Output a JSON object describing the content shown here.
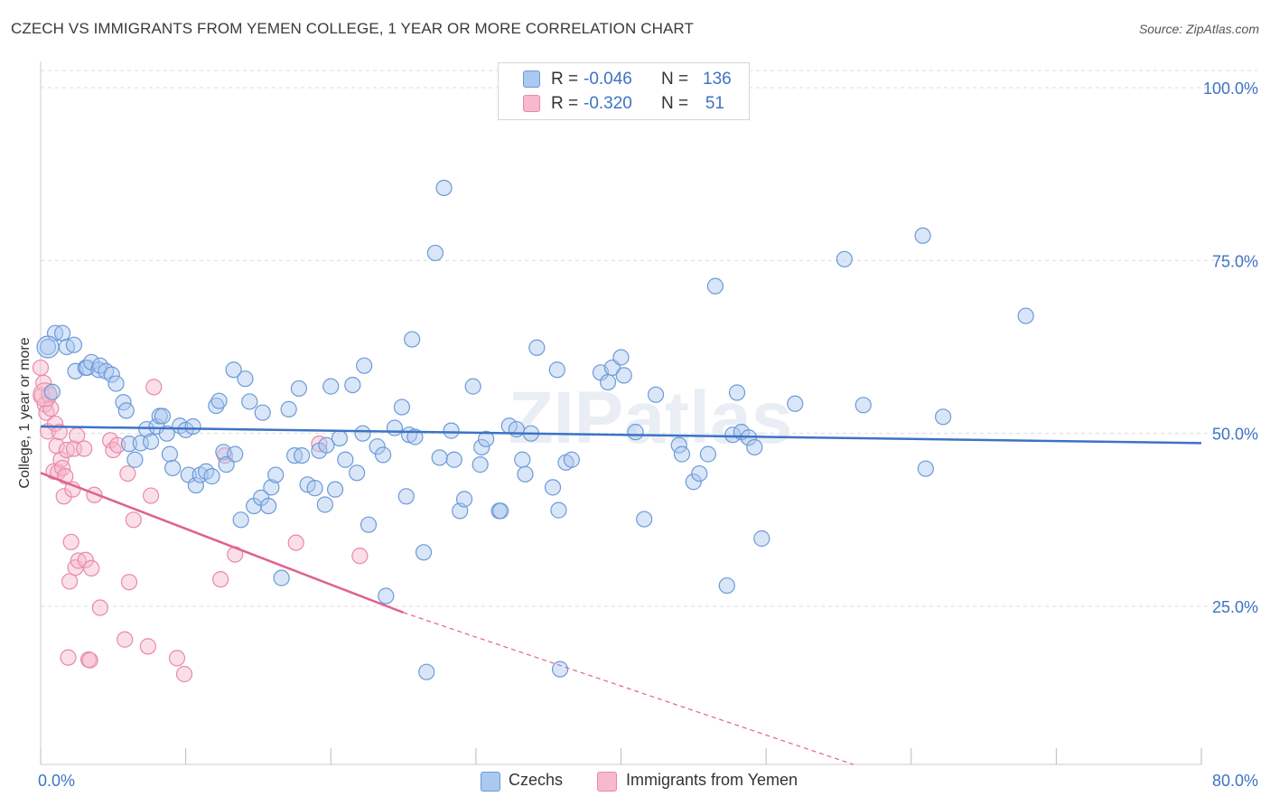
{
  "header": {
    "title": "CZECH VS IMMIGRANTS FROM YEMEN COLLEGE, 1 YEAR OR MORE CORRELATION CHART",
    "source": "Source: ZipAtlas.com"
  },
  "watermark": "ZIPatlas",
  "legend": {
    "rows": [
      {
        "r_label": "R =",
        "r_value": "-0.046",
        "n_label": "N =",
        "n_value": "136"
      },
      {
        "r_label": "R =",
        "r_value": "-0.320",
        "n_label": "N =",
        "n_value": "51"
      }
    ]
  },
  "bottom_legend": {
    "czechs": "Czechs",
    "yemen": "Immigrants from Yemen"
  },
  "colors": {
    "czech_fill": "#aac8f0",
    "czech_stroke": "#6c9ad8",
    "czech_line": "#3d73c5",
    "yemen_fill": "#f7b9cc",
    "yemen_stroke": "#e88aa8",
    "yemen_line": "#e0628e",
    "axis_label": "#3d73c5",
    "grid": "#dcdcdc"
  },
  "chart_data": {
    "type": "scatter",
    "title": "CZECH VS IMMIGRANTS FROM YEMEN COLLEGE, 1 YEAR OR MORE CORRELATION CHART",
    "xlabel": "",
    "ylabel": "College, 1 year or more",
    "xlim": [
      0,
      80
    ],
    "ylim": [
      0,
      105
    ],
    "x_tick_labels": [
      "0.0%",
      "80.0%"
    ],
    "y_tick_labels": [
      "25.0%",
      "50.0%",
      "75.0%",
      "100.0%"
    ],
    "y_ticks": [
      25,
      50,
      75,
      100
    ],
    "grid": true,
    "legend_position": "top-center",
    "series": [
      {
        "name": "Czechs",
        "R": -0.046,
        "N": 136,
        "trend": {
          "x0": 0,
          "y0": 51.0,
          "x1": 80,
          "y1": 48.6
        },
        "points": [
          [
            0.5,
            62.5
          ],
          [
            0.8,
            56
          ],
          [
            1.0,
            64.5
          ],
          [
            1.5,
            64.5
          ],
          [
            1.8,
            62.5
          ],
          [
            2.3,
            62.8
          ],
          [
            2.4,
            59
          ],
          [
            3.1,
            59.5
          ],
          [
            3.2,
            59.5
          ],
          [
            3.5,
            60.3
          ],
          [
            4.0,
            59.2
          ],
          [
            4.1,
            59.8
          ],
          [
            4.5,
            59
          ],
          [
            4.9,
            58.5
          ],
          [
            5.2,
            57.2
          ],
          [
            5.7,
            54.5
          ],
          [
            5.9,
            53.3
          ],
          [
            6.1,
            48.5
          ],
          [
            6.5,
            46.2
          ],
          [
            6.9,
            48.6
          ],
          [
            7.3,
            50.6
          ],
          [
            7.6,
            48.8
          ],
          [
            8.0,
            51.0
          ],
          [
            8.2,
            52.5
          ],
          [
            8.4,
            52.5
          ],
          [
            8.7,
            50.0
          ],
          [
            8.9,
            47.0
          ],
          [
            9.1,
            45.0
          ],
          [
            9.6,
            51.1
          ],
          [
            10.0,
            50.5
          ],
          [
            10.2,
            44.0
          ],
          [
            10.5,
            51.0
          ],
          [
            10.7,
            42.5
          ],
          [
            11.0,
            44.0
          ],
          [
            11.4,
            44.5
          ],
          [
            11.8,
            43.8
          ],
          [
            12.1,
            54.0
          ],
          [
            12.3,
            54.7
          ],
          [
            12.6,
            47.3
          ],
          [
            12.8,
            45.5
          ],
          [
            13.3,
            59.2
          ],
          [
            13.4,
            47.0
          ],
          [
            13.8,
            37.5
          ],
          [
            14.1,
            57.9
          ],
          [
            14.4,
            54.6
          ],
          [
            14.7,
            39.5
          ],
          [
            15.2,
            40.7
          ],
          [
            15.3,
            53.0
          ],
          [
            15.7,
            39.5
          ],
          [
            15.9,
            42.2
          ],
          [
            16.2,
            44.0
          ],
          [
            16.6,
            29.1
          ],
          [
            17.1,
            53.5
          ],
          [
            17.5,
            46.8
          ],
          [
            17.8,
            56.5
          ],
          [
            18.0,
            46.8
          ],
          [
            18.4,
            42.6
          ],
          [
            18.9,
            42.1
          ],
          [
            19.2,
            47.5
          ],
          [
            19.6,
            39.7
          ],
          [
            19.7,
            48.3
          ],
          [
            20.0,
            56.8
          ],
          [
            20.3,
            41.9
          ],
          [
            20.6,
            49.3
          ],
          [
            21.0,
            46.2
          ],
          [
            21.5,
            57.0
          ],
          [
            21.8,
            44.3
          ],
          [
            22.2,
            50.0
          ],
          [
            22.3,
            59.8
          ],
          [
            22.6,
            36.8
          ],
          [
            23.2,
            48.1
          ],
          [
            23.6,
            46.9
          ],
          [
            23.8,
            26.5
          ],
          [
            24.4,
            50.8
          ],
          [
            24.9,
            53.8
          ],
          [
            25.2,
            40.9
          ],
          [
            25.4,
            49.8
          ],
          [
            25.6,
            63.6
          ],
          [
            25.8,
            49.5
          ],
          [
            26.4,
            32.8
          ],
          [
            26.6,
            15.5
          ],
          [
            27.2,
            76.1
          ],
          [
            27.5,
            46.5
          ],
          [
            27.8,
            85.5
          ],
          [
            28.3,
            50.4
          ],
          [
            28.5,
            46.2
          ],
          [
            28.9,
            38.8
          ],
          [
            29.2,
            40.5
          ],
          [
            29.8,
            56.8
          ],
          [
            30.3,
            45.5
          ],
          [
            30.4,
            48.0
          ],
          [
            30.7,
            49.2
          ],
          [
            31.6,
            38.8
          ],
          [
            31.7,
            38.8
          ],
          [
            32.3,
            51.1
          ],
          [
            32.8,
            50.6
          ],
          [
            33.2,
            46.2
          ],
          [
            33.4,
            44.1
          ],
          [
            33.8,
            50.0
          ],
          [
            34.2,
            62.4
          ],
          [
            35.3,
            42.2
          ],
          [
            35.6,
            59.2
          ],
          [
            35.7,
            38.9
          ],
          [
            35.8,
            15.9
          ],
          [
            36.2,
            45.8
          ],
          [
            36.6,
            46.2
          ],
          [
            38.6,
            58.8
          ],
          [
            39.1,
            57.4
          ],
          [
            39.4,
            59.5
          ],
          [
            40.0,
            61.0
          ],
          [
            40.2,
            58.4
          ],
          [
            41.0,
            50.2
          ],
          [
            41.6,
            37.6
          ],
          [
            42.4,
            55.6
          ],
          [
            44.0,
            48.3
          ],
          [
            44.2,
            47.0
          ],
          [
            45.0,
            43.0
          ],
          [
            45.4,
            44.2
          ],
          [
            46.0,
            47.0
          ],
          [
            46.5,
            71.3
          ],
          [
            47.3,
            28.0
          ],
          [
            47.7,
            49.8
          ],
          [
            48.0,
            55.9
          ],
          [
            48.3,
            50.2
          ],
          [
            48.8,
            49.4
          ],
          [
            49.2,
            48.0
          ],
          [
            49.7,
            34.8
          ],
          [
            52.0,
            54.3
          ],
          [
            55.4,
            75.2
          ],
          [
            56.7,
            54.1
          ],
          [
            60.8,
            78.6
          ],
          [
            61.0,
            44.9
          ],
          [
            62.2,
            52.4
          ],
          [
            67.9,
            67.0
          ]
        ]
      },
      {
        "name": "Immigrants from Yemen",
        "R": -0.32,
        "N": 51,
        "trend": {
          "x0": 0,
          "y0": 44.3,
          "x1": 25,
          "y1": 24.1,
          "dash_to_x": 56,
          "dash_to_y": 0
        },
        "points": [
          [
            0.0,
            59.5
          ],
          [
            0.1,
            55.5
          ],
          [
            0.2,
            57.3
          ],
          [
            0.3,
            54.2
          ],
          [
            0.4,
            53.0
          ],
          [
            0.5,
            50.3
          ],
          [
            0.6,
            55.6
          ],
          [
            0.7,
            53.6
          ],
          [
            0.9,
            44.5
          ],
          [
            1.0,
            51.4
          ],
          [
            1.1,
            48.2
          ],
          [
            1.2,
            44.4
          ],
          [
            1.3,
            50.2
          ],
          [
            1.4,
            46.2
          ],
          [
            1.5,
            45.0
          ],
          [
            1.6,
            40.9
          ],
          [
            1.7,
            43.8
          ],
          [
            1.8,
            47.6
          ],
          [
            1.9,
            17.6
          ],
          [
            2.0,
            28.6
          ],
          [
            2.1,
            34.3
          ],
          [
            2.2,
            41.9
          ],
          [
            2.3,
            47.8
          ],
          [
            2.4,
            30.6
          ],
          [
            2.5,
            49.7
          ],
          [
            2.6,
            31.6
          ],
          [
            3.0,
            47.8
          ],
          [
            3.1,
            31.7
          ],
          [
            3.3,
            17.3
          ],
          [
            3.4,
            17.2
          ],
          [
            3.5,
            30.5
          ],
          [
            3.7,
            41.1
          ],
          [
            4.1,
            24.8
          ],
          [
            4.8,
            49.0
          ],
          [
            5.0,
            47.6
          ],
          [
            5.3,
            48.3
          ],
          [
            5.8,
            20.2
          ],
          [
            6.0,
            44.2
          ],
          [
            6.1,
            28.5
          ],
          [
            6.4,
            37.5
          ],
          [
            7.4,
            19.2
          ],
          [
            7.6,
            41.0
          ],
          [
            7.8,
            56.7
          ],
          [
            9.4,
            17.5
          ],
          [
            9.9,
            15.2
          ],
          [
            12.4,
            28.9
          ],
          [
            12.7,
            46.8
          ],
          [
            13.4,
            32.5
          ],
          [
            17.6,
            34.2
          ],
          [
            19.2,
            48.5
          ],
          [
            22.0,
            32.3
          ]
        ]
      }
    ]
  }
}
